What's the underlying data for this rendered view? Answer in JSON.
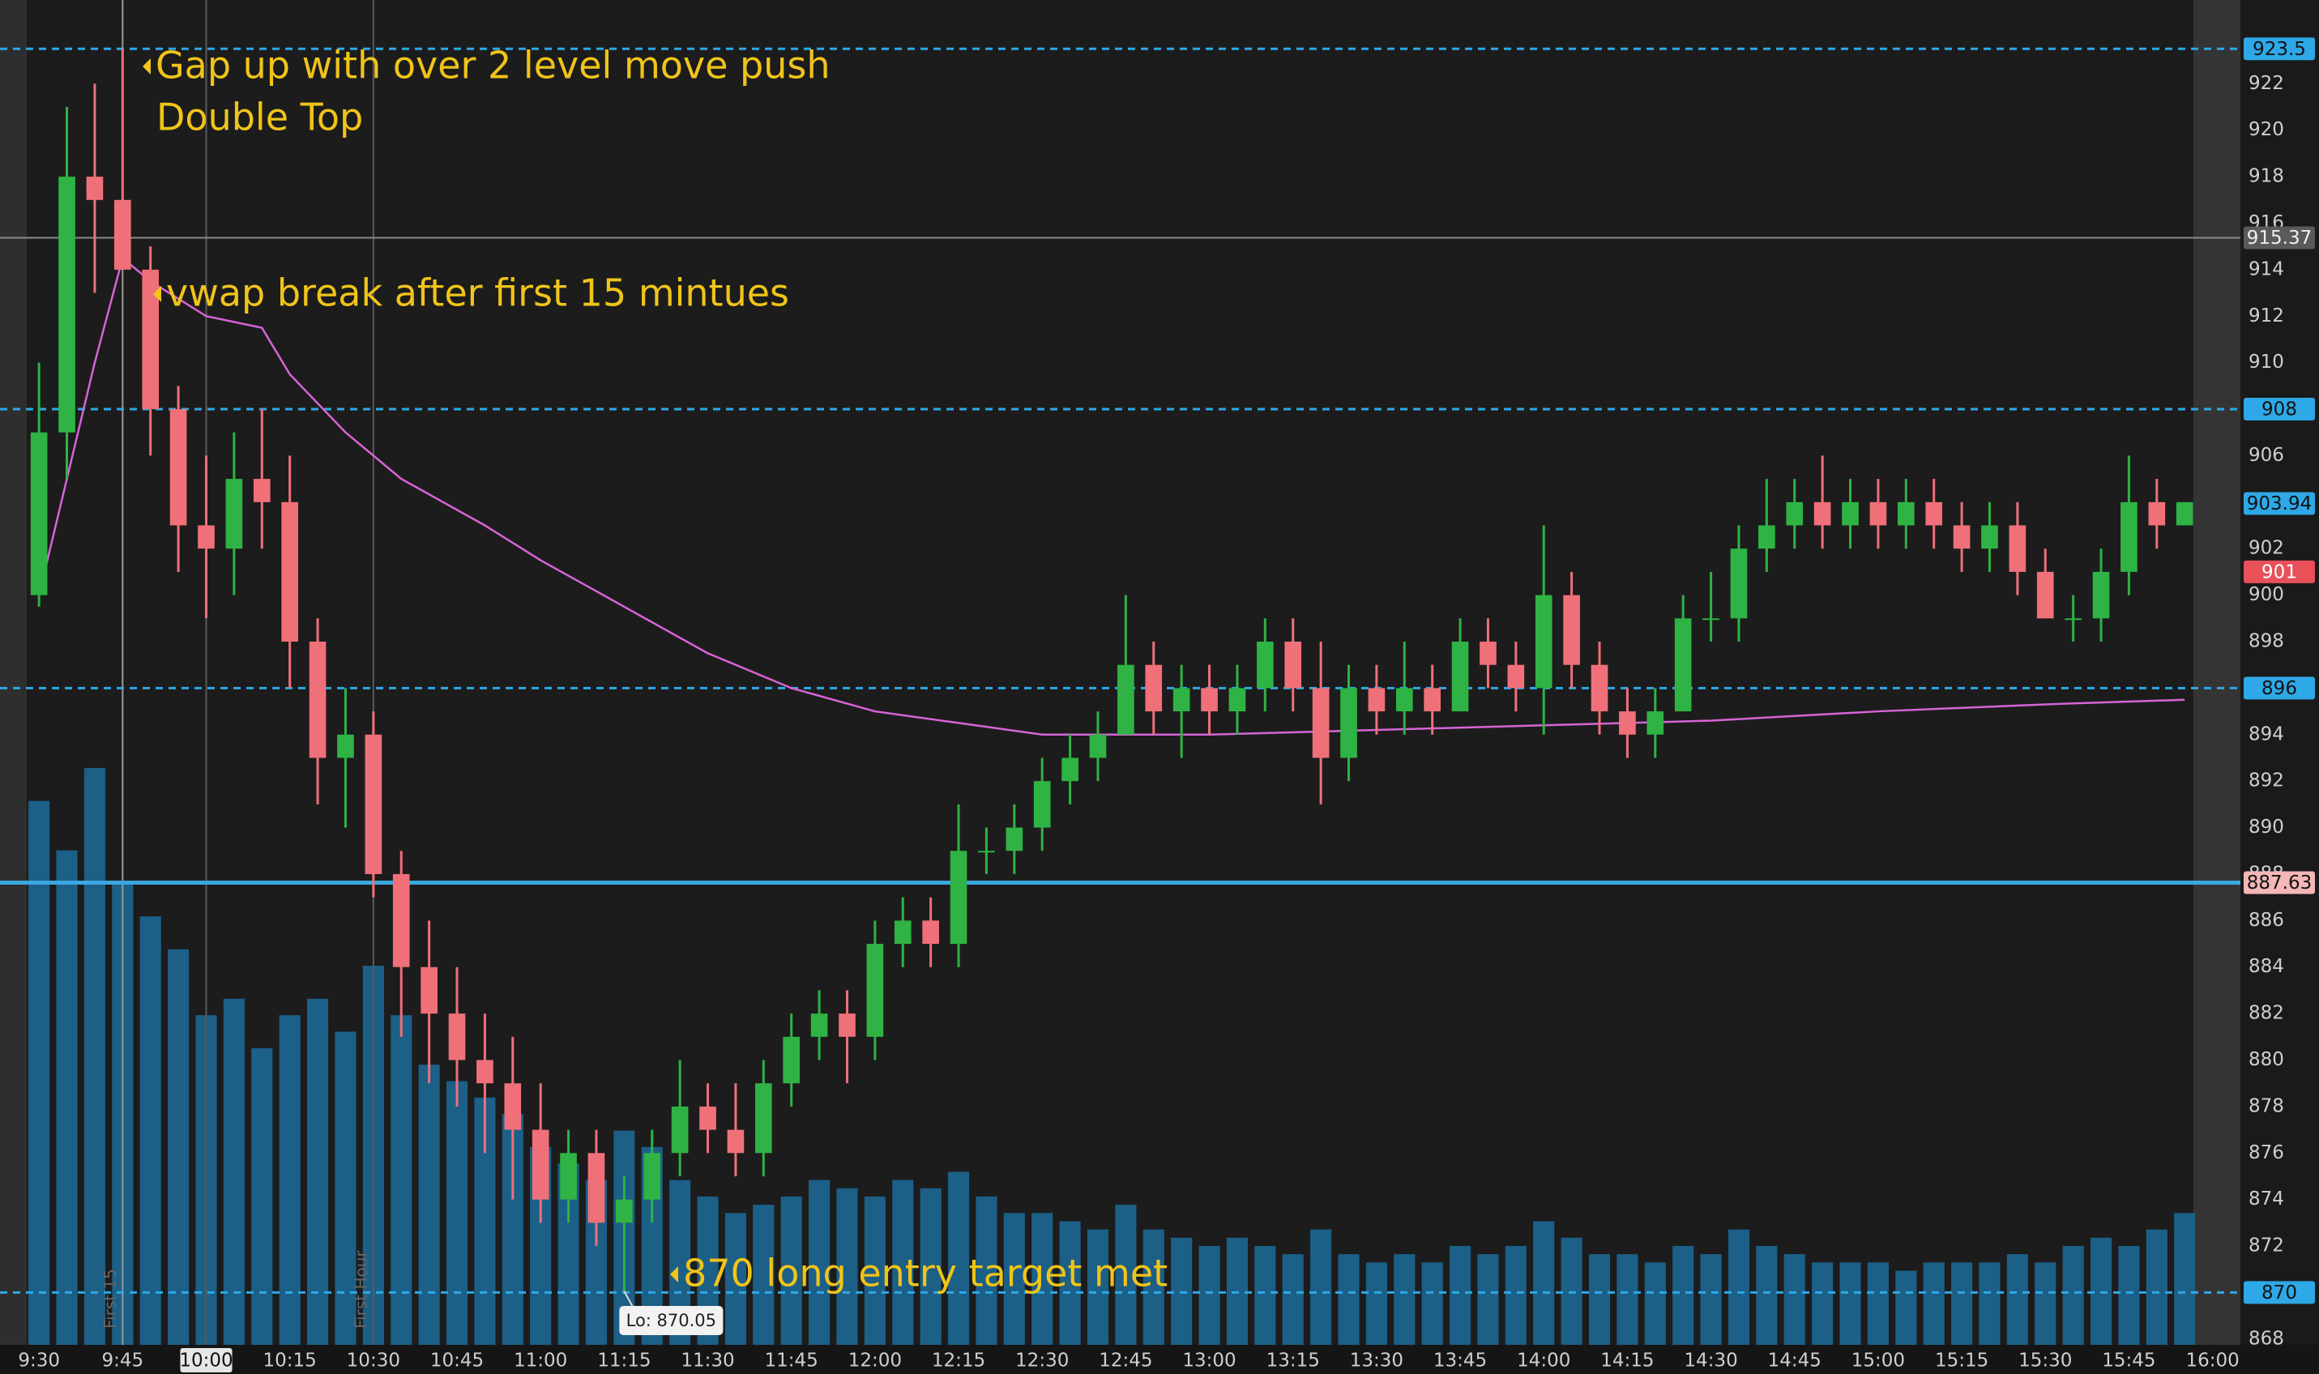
{
  "chart_data": {
    "type": "candlestick",
    "x": [
      "9:30",
      "9:35",
      "9:40",
      "9:45",
      "9:50",
      "9:55",
      "10:00",
      "10:05",
      "10:10",
      "10:15",
      "10:20",
      "10:25",
      "10:30",
      "10:35",
      "10:40",
      "10:45",
      "10:50",
      "10:55",
      "11:00",
      "11:05",
      "11:10",
      "11:15",
      "11:20",
      "11:25",
      "11:30",
      "11:35",
      "11:40",
      "11:45",
      "11:50",
      "11:55",
      "12:00",
      "12:05",
      "12:10",
      "12:15",
      "12:20",
      "12:25",
      "12:30",
      "12:35",
      "12:40",
      "12:45",
      "12:50",
      "12:55",
      "13:00",
      "13:05",
      "13:10",
      "13:15",
      "13:20",
      "13:25",
      "13:30",
      "13:35",
      "13:40",
      "13:45",
      "13:50",
      "13:55",
      "14:00",
      "14:05",
      "14:10",
      "14:15",
      "14:20",
      "14:25",
      "14:30",
      "14:35",
      "14:40",
      "14:45",
      "14:50",
      "14:55",
      "15:00",
      "15:05",
      "15:10",
      "15:15",
      "15:20",
      "15:25",
      "15:30",
      "15:35",
      "15:40",
      "15:45",
      "15:50",
      "15:55"
    ],
    "open": [
      900,
      907,
      918,
      917,
      914,
      908,
      903,
      902,
      905,
      904,
      898,
      893,
      894,
      888,
      884,
      882,
      880,
      879,
      877,
      874,
      876,
      873,
      874,
      876,
      878,
      877,
      876,
      879,
      881,
      882,
      881,
      885,
      886,
      885,
      889,
      889,
      890,
      892,
      893,
      894,
      897,
      895,
      896,
      895,
      896,
      898,
      896,
      893,
      896,
      895,
      896,
      895,
      898,
      897,
      896,
      900,
      897,
      895,
      894,
      895,
      899,
      899,
      902,
      903,
      904,
      903,
      904,
      903,
      904,
      903,
      902,
      903,
      901,
      899,
      899,
      901,
      904,
      903
    ],
    "high": [
      910,
      921,
      922,
      923.5,
      915,
      909,
      906,
      907,
      908,
      906,
      899,
      896,
      895,
      889,
      886,
      884,
      882,
      881,
      879,
      877,
      877,
      875,
      877,
      880,
      879,
      879,
      880,
      882,
      883,
      883,
      886,
      887,
      887,
      891,
      890,
      891,
      893,
      894,
      895,
      900,
      898,
      897,
      897,
      897,
      899,
      899,
      898,
      897,
      897,
      898,
      897,
      899,
      899,
      898,
      903,
      901,
      898,
      896,
      896,
      900,
      901,
      903,
      905,
      905,
      906,
      905,
      905,
      905,
      905,
      904,
      904,
      904,
      902,
      900,
      902,
      906,
      905,
      904
    ],
    "low": [
      899.5,
      905,
      913,
      914,
      906,
      901,
      899,
      900,
      902,
      896,
      891,
      890,
      887,
      881,
      879,
      878,
      876,
      874,
      873,
      873,
      872,
      870.05,
      873,
      875,
      876,
      875,
      875,
      878,
      880,
      879,
      880,
      884,
      884,
      884,
      888,
      888,
      889,
      891,
      892,
      894,
      894,
      893,
      894,
      894,
      895,
      895,
      891,
      892,
      894,
      894,
      894,
      895,
      896,
      895,
      894,
      896,
      894,
      893,
      893,
      895,
      898,
      898,
      901,
      902,
      902,
      902,
      902,
      902,
      902,
      901,
      901,
      900,
      899,
      898,
      898,
      900,
      902,
      903
    ],
    "close": [
      907,
      918,
      917,
      914,
      908,
      903,
      902,
      905,
      904,
      898,
      893,
      894,
      888,
      884,
      882,
      880,
      879,
      877,
      874,
      876,
      873,
      874,
      876,
      878,
      877,
      876,
      879,
      881,
      882,
      881,
      885,
      886,
      885,
      889,
      889,
      890,
      892,
      893,
      894,
      897,
      895,
      896,
      895,
      896,
      898,
      896,
      893,
      896,
      895,
      896,
      895,
      898,
      897,
      896,
      900,
      897,
      895,
      894,
      895,
      899,
      899,
      902,
      903,
      904,
      903,
      904,
      903,
      904,
      903,
      902,
      903,
      901,
      899,
      899,
      901,
      904,
      903,
      904
    ],
    "volume": [
      330,
      300,
      350,
      280,
      260,
      240,
      200,
      210,
      180,
      200,
      210,
      190,
      230,
      200,
      170,
      160,
      150,
      140,
      120,
      110,
      100,
      130,
      120,
      100,
      90,
      80,
      85,
      90,
      100,
      95,
      90,
      100,
      95,
      105,
      90,
      80,
      80,
      75,
      70,
      85,
      70,
      65,
      60,
      65,
      60,
      55,
      70,
      55,
      50,
      55,
      50,
      60,
      55,
      60,
      75,
      65,
      55,
      55,
      50,
      60,
      55,
      70,
      60,
      55,
      50,
      50,
      50,
      45,
      50,
      50,
      50,
      55,
      50,
      60,
      65,
      60,
      70,
      80
    ],
    "vwap_x": [
      "9:30",
      "9:35",
      "9:40",
      "9:45",
      "9:50",
      "10:00",
      "10:10",
      "10:15",
      "10:25",
      "10:35",
      "10:50",
      "11:00",
      "11:15",
      "11:30",
      "11:45",
      "12:00",
      "12:15",
      "12:30",
      "13:00",
      "13:30",
      "14:00",
      "14:30",
      "15:00",
      "15:30",
      "15:55"
    ],
    "vwap_values": [
      900,
      905,
      910,
      914.5,
      913.5,
      912,
      911.5,
      909.5,
      907,
      905,
      903,
      901.5,
      899.5,
      897.5,
      896,
      895,
      894.5,
      894,
      894,
      894.2,
      894.4,
      894.6,
      895,
      895.3,
      895.5
    ],
    "up_color": "#2fb344",
    "down_color": "#f0707a",
    "volume_color": "#1c5f87",
    "vwap_color": "#d664d6",
    "xlim": [
      "9:23",
      "16:05"
    ],
    "xticks": [
      "9:30",
      "9:45",
      "10:00",
      "10:15",
      "10:30",
      "10:45",
      "11:00",
      "11:15",
      "11:30",
      "11:45",
      "12:00",
      "12:15",
      "12:30",
      "12:45",
      "13:00",
      "13:15",
      "13:30",
      "13:45",
      "14:00",
      "14:15",
      "14:30",
      "14:45",
      "15:00",
      "15:15",
      "15:30",
      "15:45",
      "16:00"
    ],
    "ylim": [
      867.75,
      925.6
    ],
    "yticks": [
      868,
      870,
      872,
      874,
      876,
      878,
      880,
      882,
      884,
      886,
      888,
      890,
      892,
      894,
      896,
      898,
      900,
      902,
      904,
      906,
      908,
      910,
      912,
      914,
      916,
      918,
      920,
      922
    ],
    "grid": false,
    "levels": [
      {
        "value": 923.5,
        "style": "dashed",
        "color": "#2ea8e6"
      },
      {
        "value": 915.37,
        "style": "solid",
        "color": "#8a8a8a"
      },
      {
        "value": 908,
        "style": "dashed",
        "color": "#2ea8e6"
      },
      {
        "value": 903.94,
        "style": "none",
        "color": "#2ea8e6"
      },
      {
        "value": 901,
        "style": "none",
        "color": "#e8505a"
      },
      {
        "value": 896,
        "style": "dashed",
        "color": "#2ea8e6"
      },
      {
        "value": 887.63,
        "style": "solid",
        "color": "#3aa7e0"
      },
      {
        "value": 870,
        "style": "dashed",
        "color": "#2ea8e6"
      }
    ],
    "markers": [
      {
        "x": "9:45",
        "label": "First 15"
      },
      {
        "x": "10:00"
      },
      {
        "x": "10:30",
        "label": "First Hour"
      }
    ],
    "annotations": [
      "Gap up with over 2 level move push",
      "Double Top",
      "vwap break after first 15 mintues",
      "870 long entry target met"
    ],
    "low_label": "Lo: 870.05"
  }
}
